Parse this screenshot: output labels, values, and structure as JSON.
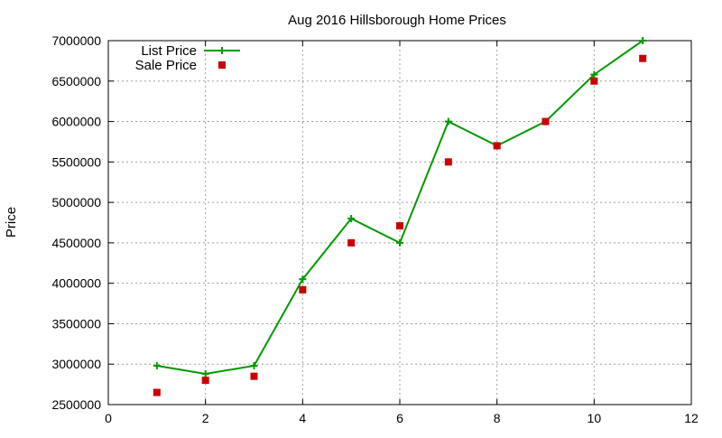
{
  "chart_data": {
    "type": "line",
    "title": "Aug 2016 Hillsborough Home Prices",
    "xlabel": "",
    "ylabel": "Price",
    "xlim": [
      0,
      12
    ],
    "ylim": [
      2500000,
      7000000
    ],
    "xticks": [
      0,
      2,
      4,
      6,
      8,
      10,
      12
    ],
    "yticks": [
      2500000,
      3000000,
      3500000,
      4000000,
      4500000,
      5000000,
      5500000,
      6000000,
      6500000,
      7000000
    ],
    "grid": true,
    "legend_position": "top-left",
    "series": [
      {
        "name": "List Price",
        "type": "line",
        "color": "#009900",
        "marker": "plus",
        "x": [
          1,
          2,
          3,
          4,
          5,
          6,
          7,
          8,
          9,
          10,
          11
        ],
        "y": [
          2980000,
          2880000,
          2980000,
          4050000,
          4800000,
          4500000,
          6000000,
          5700000,
          6000000,
          6580000,
          7000000
        ]
      },
      {
        "name": "Sale Price",
        "type": "scatter",
        "color": "#cc0000",
        "marker": "square",
        "x": [
          1,
          2,
          3,
          4,
          5,
          6,
          7,
          8,
          9,
          10,
          11
        ],
        "y": [
          2650000,
          2800000,
          2850000,
          3920000,
          4500000,
          4710000,
          5500000,
          5700000,
          6000000,
          6500000,
          6780000
        ]
      }
    ]
  }
}
